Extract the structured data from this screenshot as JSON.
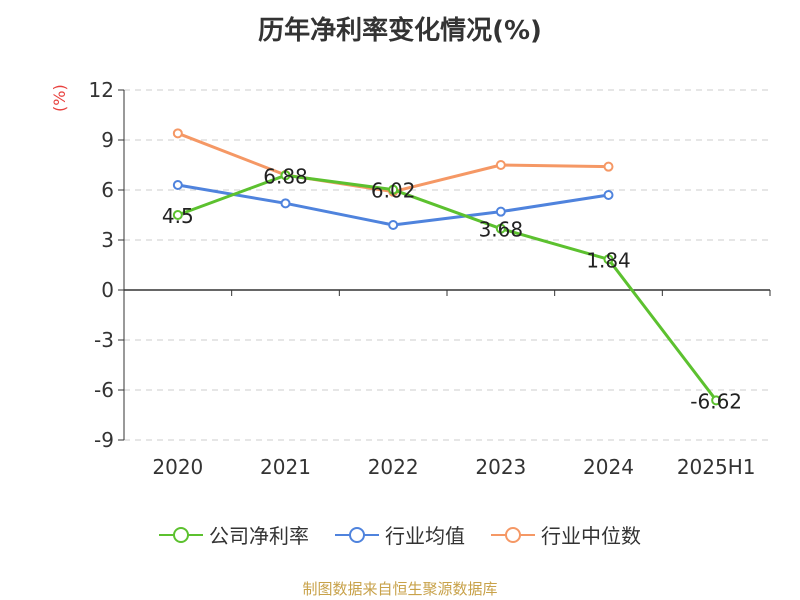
{
  "title": "历年净利率变化情况(%)",
  "y_unit": "(%)",
  "source": "制图数据来自恒生聚源数据库",
  "colors": {
    "company": "#5cc12f",
    "industry_avg": "#4f83dd",
    "industry_median": "#f59865",
    "grid": "#cccccc",
    "axis": "#333333"
  },
  "chart_data": {
    "type": "line",
    "categories": [
      "2020",
      "2021",
      "2022",
      "2023",
      "2024",
      "2025H1"
    ],
    "ylim": [
      -9,
      12
    ],
    "yticks": [
      12,
      9,
      6,
      3,
      0,
      -3,
      -6,
      -9
    ],
    "grid": true,
    "legend_position": "bottom",
    "series": [
      {
        "key": "company",
        "name": "公司净利率",
        "values": [
          4.5,
          6.88,
          6.02,
          3.68,
          1.84,
          -6.62
        ],
        "labels": [
          "4.5",
          "6.88",
          "6.02",
          "3.68",
          "1.84",
          "-6.62"
        ]
      },
      {
        "key": "industry_avg",
        "name": "行业均值",
        "values": [
          6.3,
          5.2,
          3.9,
          4.7,
          5.7,
          null
        ]
      },
      {
        "key": "industry_median",
        "name": "行业中位数",
        "values": [
          9.4,
          6.9,
          5.9,
          7.5,
          7.4,
          null
        ]
      }
    ]
  }
}
